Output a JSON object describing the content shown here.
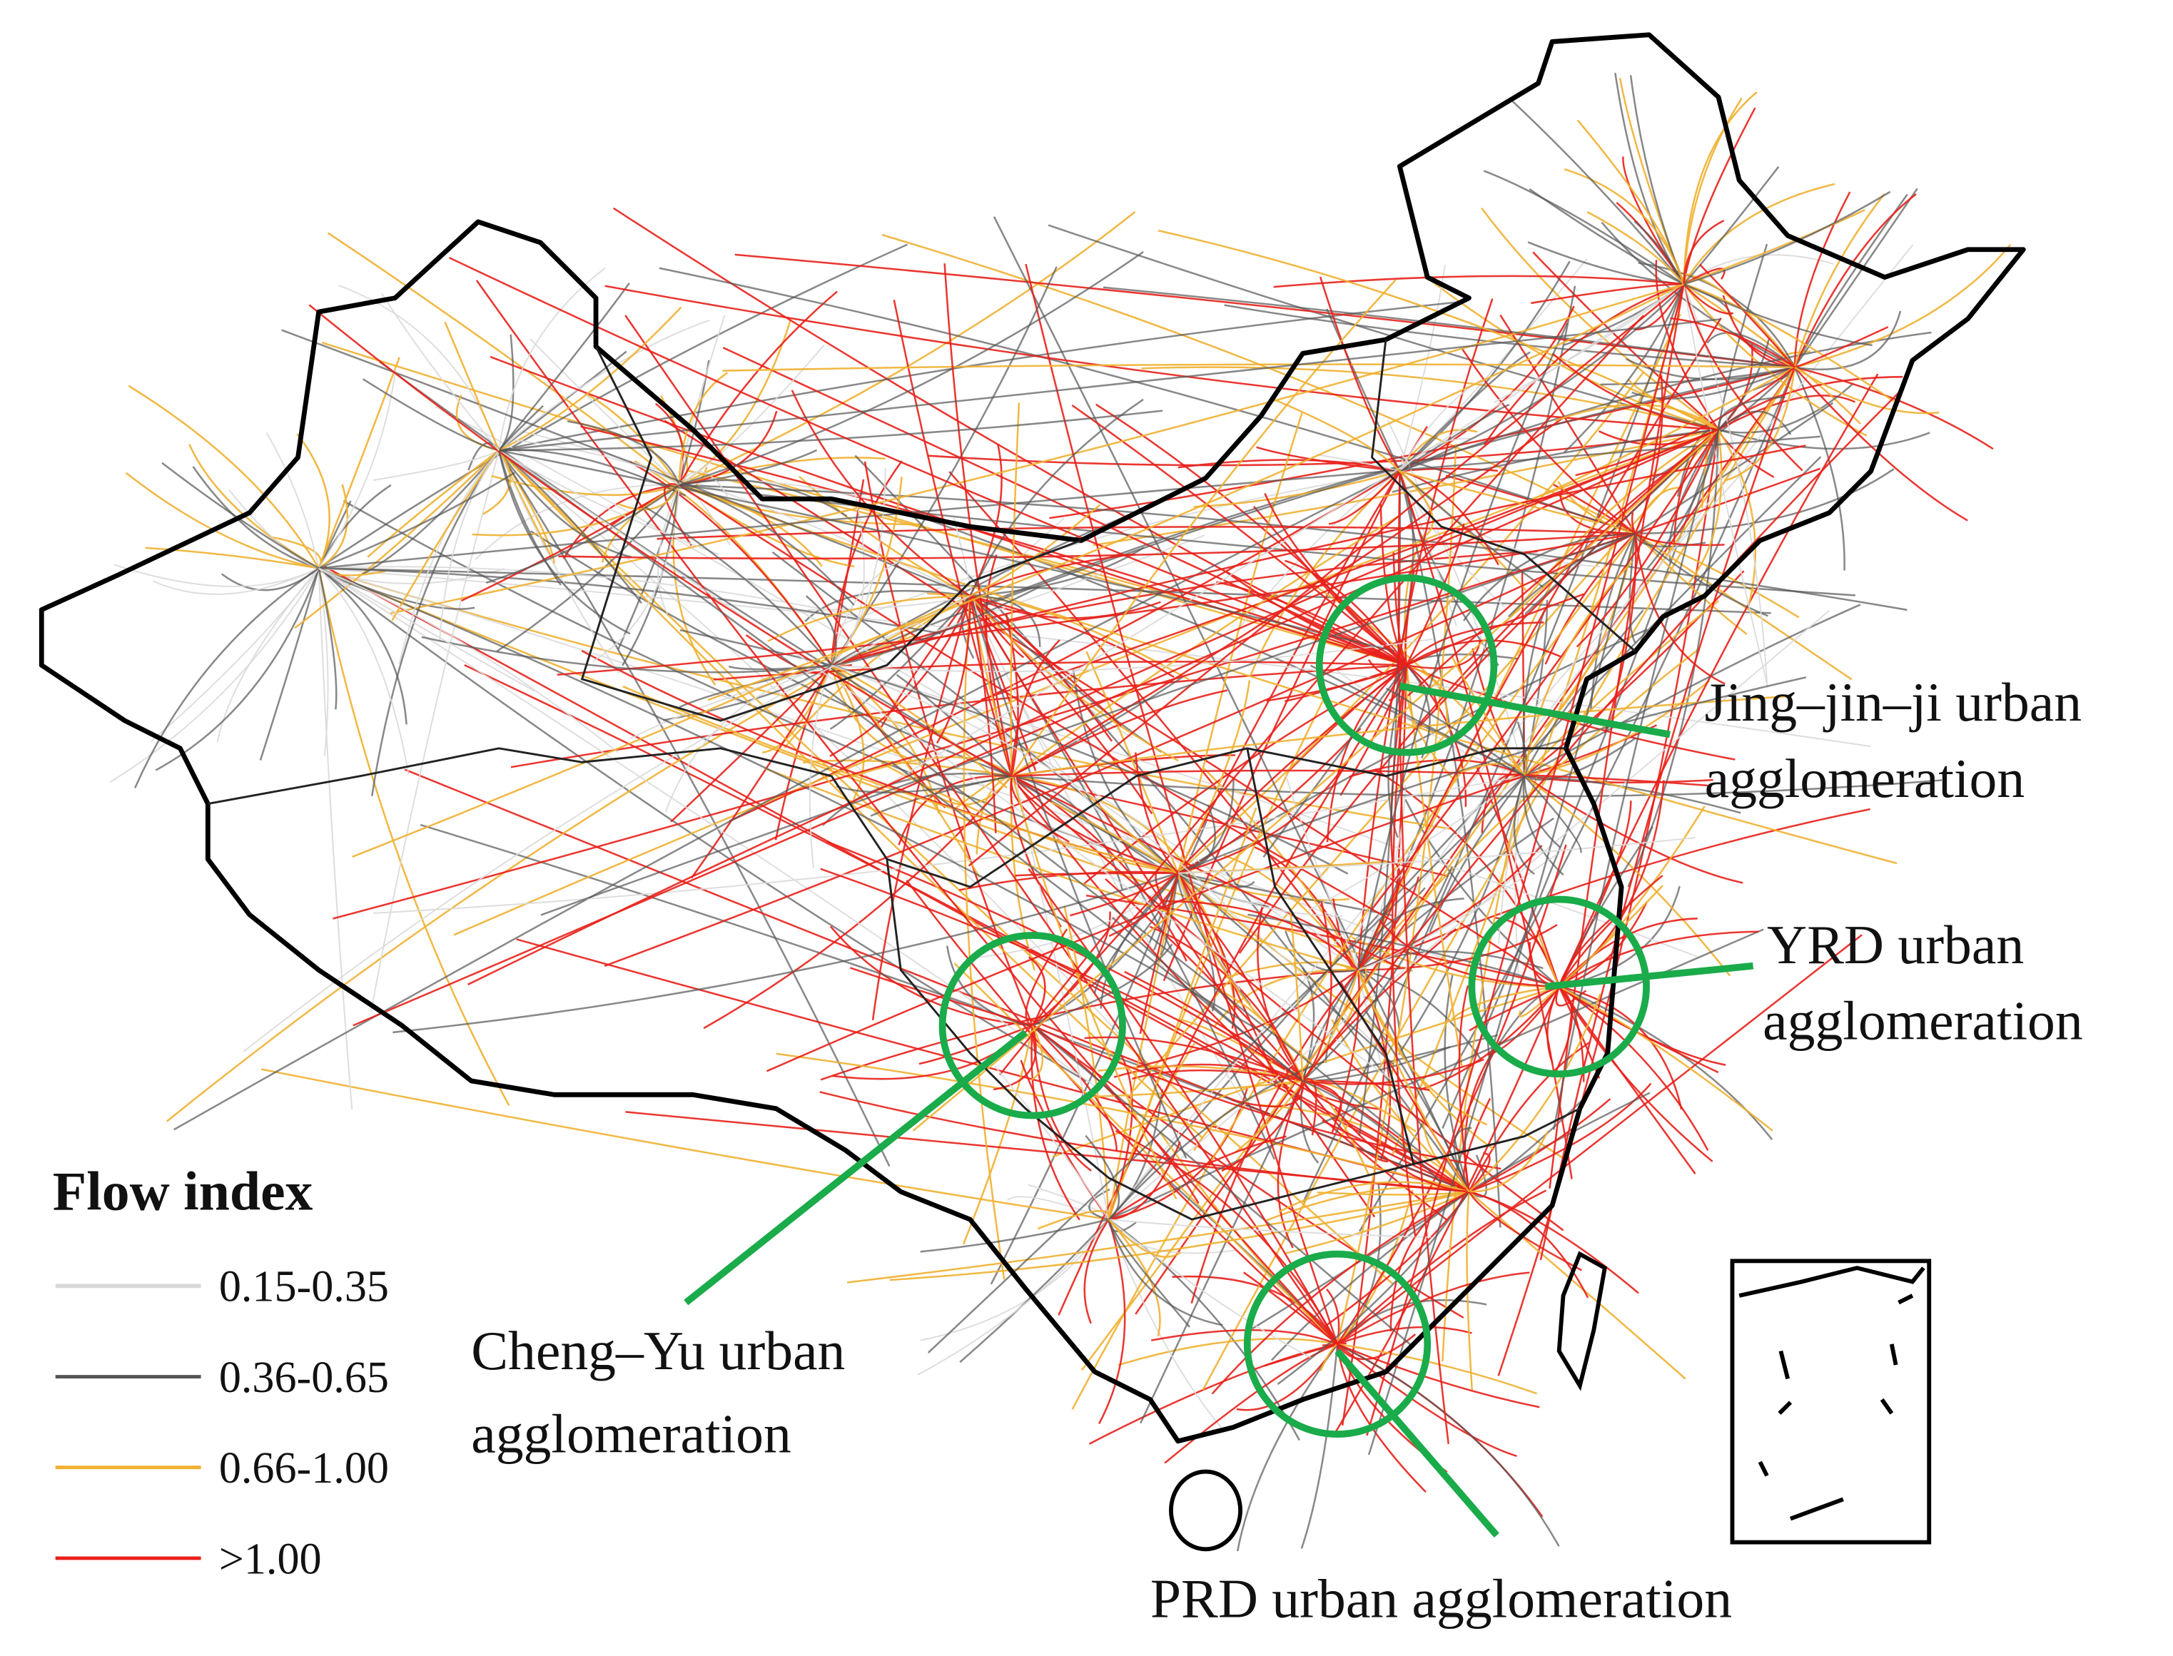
{
  "legend": {
    "title": "Flow index",
    "items": [
      {
        "label": "0.15-0.35",
        "color": "#d9d9d9"
      },
      {
        "label": "0.36-0.65",
        "color": "#555555"
      },
      {
        "label": "0.66-1.00",
        "color": "#f0b030"
      },
      {
        "label": ">1.00",
        "color": "#e8201a"
      }
    ]
  },
  "annotations": [
    {
      "lines": [
        "Jing–jin–ji urban",
        "agglomeration"
      ]
    },
    {
      "lines": [
        "YRD urban",
        "agglomeration"
      ]
    },
    {
      "lines": [
        "Cheng–Yu urban",
        "agglomeration"
      ]
    },
    {
      "lines": [
        "PRD urban agglomeration"
      ]
    }
  ]
}
